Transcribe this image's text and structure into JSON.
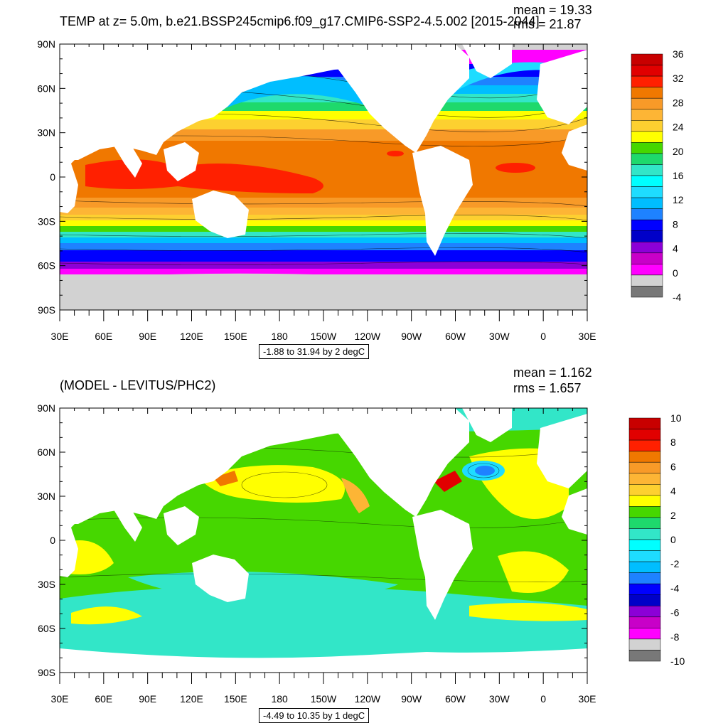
{
  "panels": [
    {
      "title": "TEMP at z=   5.0m, b.e21.BSSP245cmip6.f09_g17.CMIP6-SSP2-4.5.002 [2015-2044]",
      "mean": "mean = 19.33",
      "rms": "rms = 21.87",
      "range_label": "-1.88 to 31.94 by 2 degC",
      "lat_labels": [
        "90N",
        "60N",
        "30N",
        "0",
        "30S",
        "60S",
        "90S"
      ],
      "lon_labels": [
        "30E",
        "60E",
        "90E",
        "120E",
        "150E",
        "180",
        "150W",
        "120W",
        "90W",
        "60W",
        "30W",
        "0",
        "30E"
      ],
      "colorbar_labels": [
        "36",
        "32",
        "28",
        "24",
        "20",
        "16",
        "12",
        "8",
        "4",
        "0",
        "-4"
      ],
      "colorbar_colors": [
        "#c80000",
        "#e10000",
        "#ff2000",
        "#f07800",
        "#f89a28",
        "#fdb535",
        "#fdd030",
        "#ffff00",
        "#46d700",
        "#1ed96c",
        "#32e6c8",
        "#00ffff",
        "#1edcff",
        "#00beff",
        "#1e82ff",
        "#0000ff",
        "#0000c8",
        "#8c00d7",
        "#c800c8",
        "#ff00ff",
        "#d2d2d2",
        "#787878"
      ]
    },
    {
      "title": "(MODEL - LEVITUS/PHC2)",
      "mean": "mean = 1.162",
      "rms": "rms = 1.657",
      "range_label": "-4.49 to 10.35 by 1 degC",
      "lat_labels": [
        "90N",
        "60N",
        "30N",
        "0",
        "30S",
        "60S",
        "90S"
      ],
      "lon_labels": [
        "30E",
        "60E",
        "90E",
        "120E",
        "150E",
        "180",
        "150W",
        "120W",
        "90W",
        "60W",
        "30W",
        "0",
        "30E"
      ],
      "colorbar_labels": [
        "10",
        "8",
        "6",
        "4",
        "2",
        "0",
        "-2",
        "-4",
        "-6",
        "-8",
        "-10"
      ],
      "colorbar_colors": [
        "#c80000",
        "#e10000",
        "#ff2000",
        "#f07800",
        "#f89a28",
        "#fdb535",
        "#fdd030",
        "#ffff00",
        "#46d700",
        "#1ed96c",
        "#32e6c8",
        "#00ffff",
        "#1edcff",
        "#00beff",
        "#1e82ff",
        "#0000ff",
        "#0000c8",
        "#8c00d7",
        "#c800c8",
        "#ff00ff",
        "#d2d2d2",
        "#787878"
      ]
    }
  ]
}
